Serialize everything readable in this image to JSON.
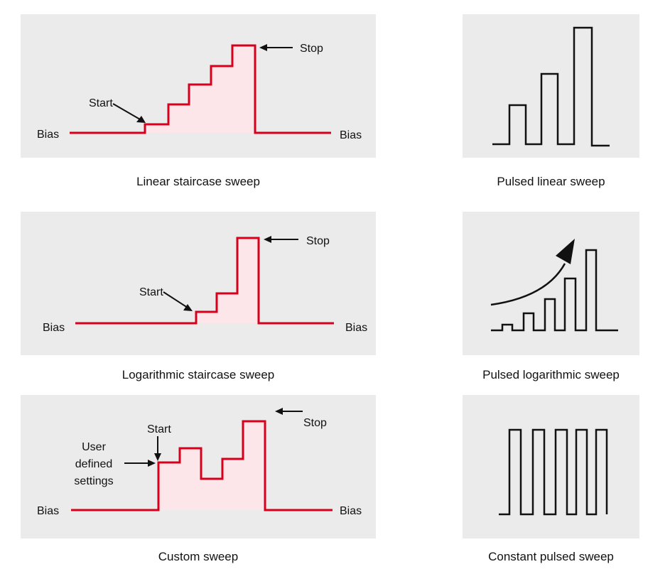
{
  "colors": {
    "panel_bg": "#ebebeb",
    "red_wave": "#d6001c",
    "pink_fill": "#fde6ea",
    "black_wave": "#111111"
  },
  "linear": {
    "caption": "Linear staircase sweep",
    "bias_left": "Bias",
    "bias_right": "Bias",
    "start": "Start",
    "stop": "Stop"
  },
  "logarithmic": {
    "caption": "Logarithmic staircase sweep",
    "bias_left": "Bias",
    "bias_right": "Bias",
    "start": "Start",
    "stop": "Stop"
  },
  "custom": {
    "caption": "Custom sweep",
    "bias_left": "Bias",
    "bias_right": "Bias",
    "start": "Start",
    "stop": "Stop",
    "user_line1": "User",
    "user_line2": "defined",
    "user_line3": "settings"
  },
  "pulsed_linear": {
    "caption": "Pulsed linear sweep"
  },
  "pulsed_log": {
    "caption": "Pulsed logarithmic sweep"
  },
  "constant_pulsed": {
    "caption": "Constant pulsed sweep"
  }
}
